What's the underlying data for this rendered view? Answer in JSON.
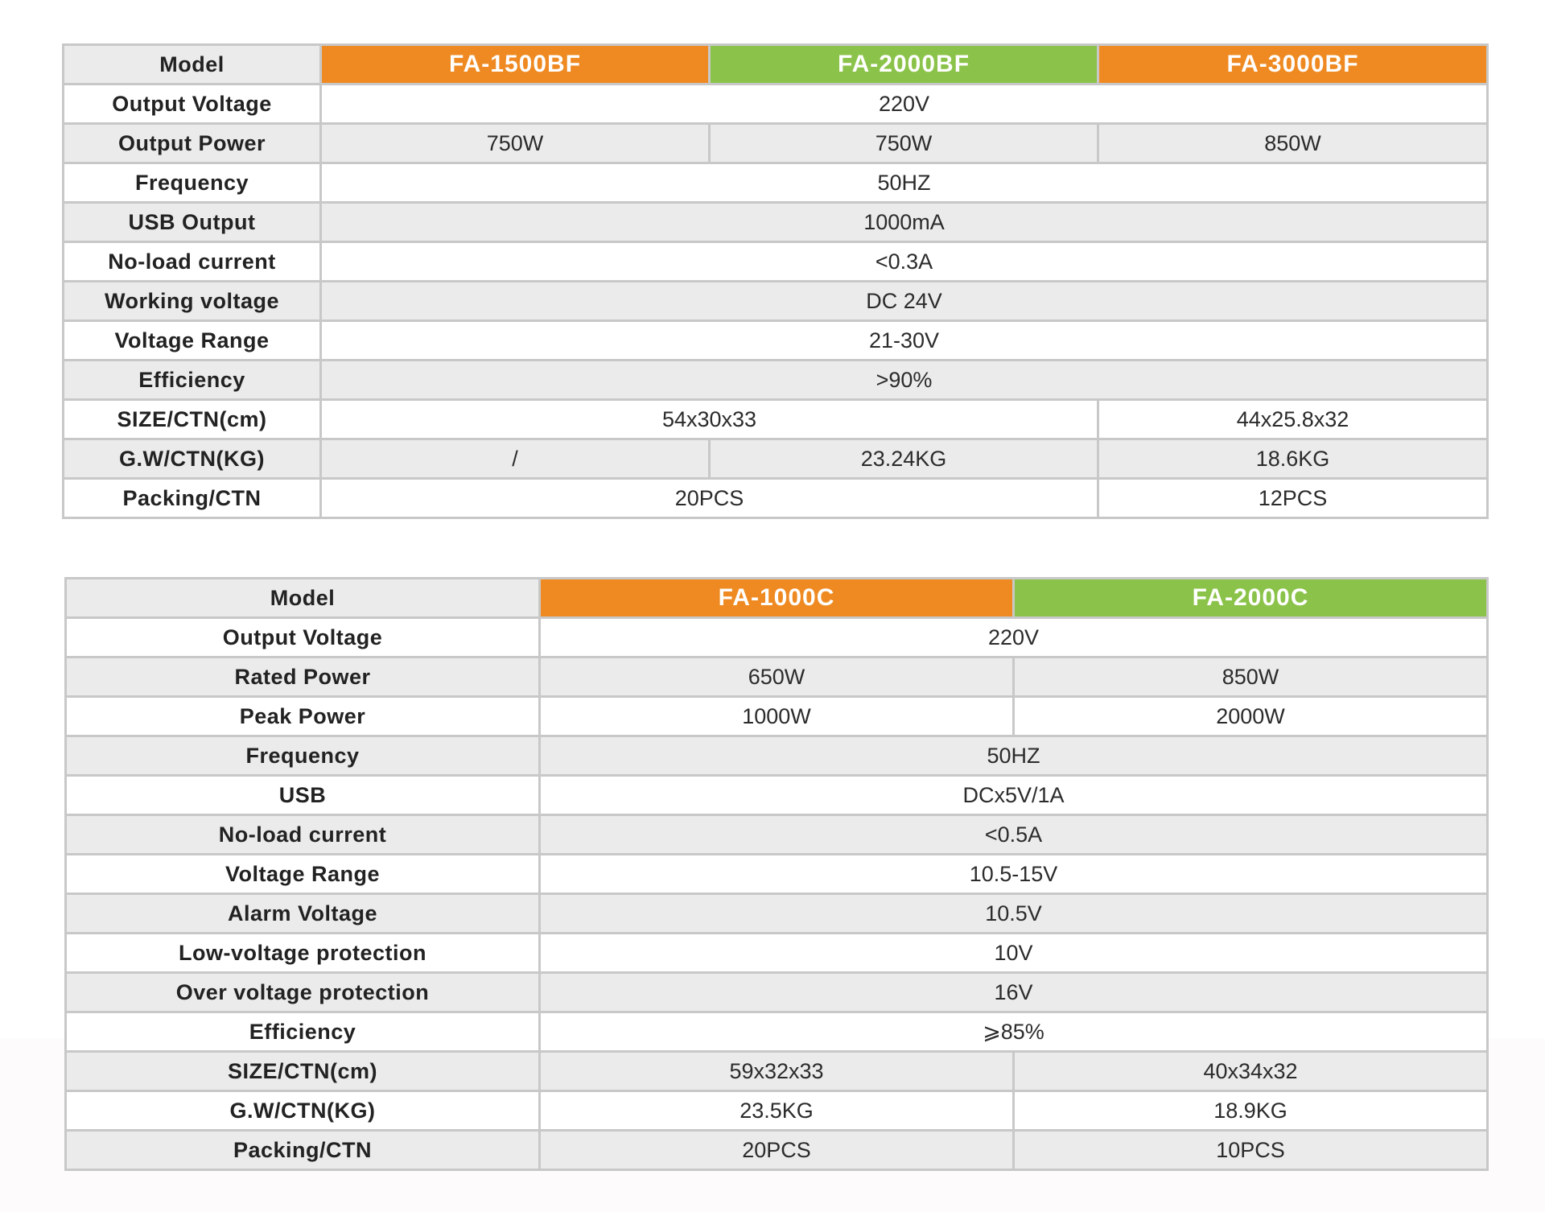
{
  "colors": {
    "orange": "#ef8a22",
    "green": "#8bc34a",
    "row_gray": "#ebebeb",
    "border": "#c8c8c8"
  },
  "table1": {
    "model_label": "Model",
    "models": [
      "FA-1500BF",
      "FA-2000BF",
      "FA-3000BF"
    ],
    "rows": {
      "output_voltage": {
        "label": "Output Voltage",
        "value": "220V"
      },
      "output_power": {
        "label": "Output Power",
        "values": [
          "750W",
          "750W",
          "850W"
        ]
      },
      "frequency": {
        "label": "Frequency",
        "value": "50HZ"
      },
      "usb_output": {
        "label": "USB Output",
        "value": "1000mA"
      },
      "no_load_current": {
        "label": "No-load current",
        "value": "<0.3A"
      },
      "working_voltage": {
        "label": "Working voltage",
        "value": "DC 24V"
      },
      "voltage_range": {
        "label": "Voltage Range",
        "value": "21-30V"
      },
      "efficiency": {
        "label": "Efficiency",
        "value": ">90%"
      },
      "size_ctn": {
        "label": "SIZE/CTN(cm)",
        "value_12": "54x30x33",
        "value_3": "44x25.8x32"
      },
      "gw_ctn": {
        "label": "G.W/CTN(KG)",
        "values": [
          "/",
          "23.24KG",
          "18.6KG"
        ]
      },
      "packing_ctn": {
        "label": "Packing/CTN",
        "value_12": "20PCS",
        "value_3": "12PCS"
      }
    }
  },
  "table2": {
    "model_label": "Model",
    "models": [
      "FA-1000C",
      "FA-2000C"
    ],
    "rows": {
      "output_voltage": {
        "label": "Output Voltage",
        "value": "220V"
      },
      "rated_power": {
        "label": "Rated Power",
        "values": [
          "650W",
          "850W"
        ]
      },
      "peak_power": {
        "label": "Peak Power",
        "values": [
          "1000W",
          "2000W"
        ]
      },
      "frequency": {
        "label": "Frequency",
        "value": "50HZ"
      },
      "usb": {
        "label": "USB",
        "value": "DCx5V/1A"
      },
      "no_load_current": {
        "label": "No-load current",
        "value": "<0.5A"
      },
      "voltage_range": {
        "label": "Voltage Range",
        "value": "10.5-15V"
      },
      "alarm_voltage": {
        "label": "Alarm Voltage",
        "value": "10.5V"
      },
      "low_voltage_protection": {
        "label": "Low-voltage protection",
        "value": "10V"
      },
      "over_voltage_protection": {
        "label": "Over voltage protection",
        "value": "16V"
      },
      "efficiency": {
        "label": "Efficiency",
        "value": "⩾85%"
      },
      "size_ctn": {
        "label": "SIZE/CTN(cm)",
        "values": [
          "59x32x33",
          "40x34x32"
        ]
      },
      "gw_ctn": {
        "label": "G.W/CTN(KG)",
        "values": [
          "23.5KG",
          "18.9KG"
        ]
      },
      "packing_ctn": {
        "label": "Packing/CTN",
        "values": [
          "20PCS",
          "10PCS"
        ]
      }
    }
  }
}
